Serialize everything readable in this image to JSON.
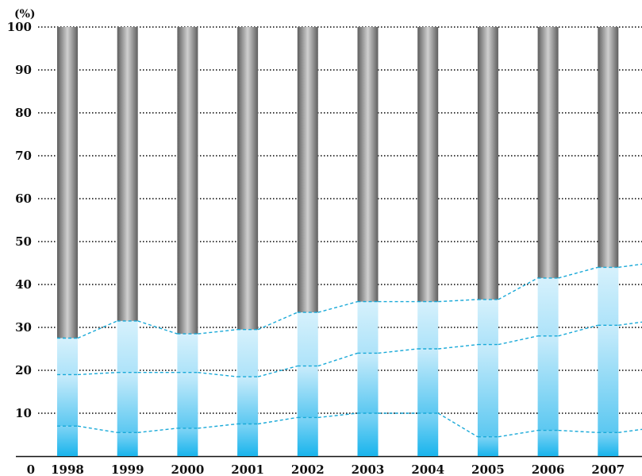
{
  "chart_data": {
    "type": "bar",
    "title": "",
    "unit_label": "(%)",
    "xlabel": "",
    "ylabel": "",
    "ylim": [
      0,
      100
    ],
    "y_ticks": [
      "0",
      "10",
      "20",
      "30",
      "40",
      "50",
      "60",
      "70",
      "80",
      "90",
      "100"
    ],
    "grid": true,
    "categories": [
      "1998",
      "1999",
      "2000",
      "2001",
      "2002",
      "2003",
      "2004",
      "2005",
      "2006",
      "2007"
    ],
    "highlight_category": "2007",
    "series": [
      {
        "values": [
          7,
          5.5,
          6.5,
          7.5,
          9,
          10,
          10,
          4.5,
          6,
          5.5
        ]
      },
      {
        "values": [
          19,
          19.5,
          19.5,
          18.5,
          21,
          24,
          25,
          26,
          28,
          30.5
        ]
      },
      {
        "values": [
          27.5,
          31.5,
          28.5,
          29.5,
          33.5,
          36,
          36,
          36.5,
          41.5,
          44
        ]
      },
      {
        "values": [
          100,
          100,
          100,
          100,
          100,
          100,
          100,
          100,
          100,
          100
        ]
      }
    ],
    "colors": {
      "seg1": "#19b4ec",
      "seg2": "#5cc8f1",
      "seg3": "#aee3f9",
      "seg3_light": "#d6f1fc",
      "seg4_dark": "#6e6e6e",
      "seg4_light": "#c8c8c8",
      "connector": "#19a9d8",
      "grid": "#000000",
      "highlight_text": "#2aaee0"
    }
  }
}
